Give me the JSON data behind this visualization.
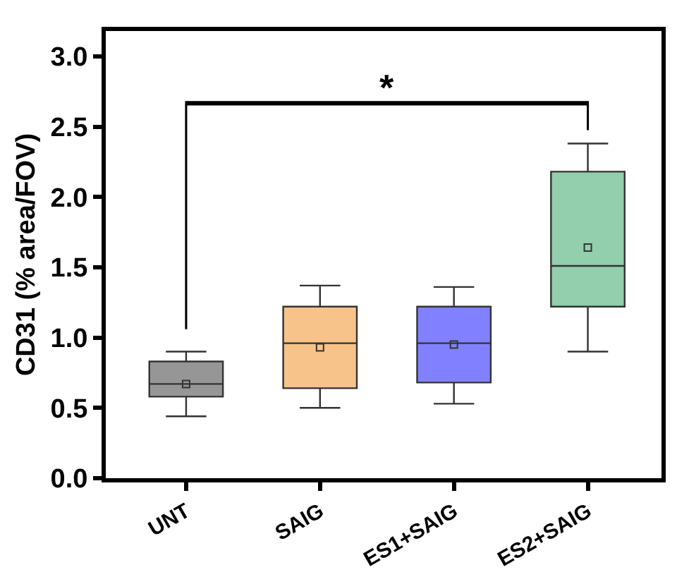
{
  "chart_data": {
    "type": "box",
    "ylabel": "CD31 (% area/FOV)",
    "categories": [
      "UNT",
      "SAIG",
      "ES1+SAIG",
      "ES2+SAIG"
    ],
    "boxes": [
      {
        "low": 0.44,
        "q1": 0.58,
        "median": 0.67,
        "q3": 0.83,
        "high": 0.9,
        "mean": 0.67
      },
      {
        "low": 0.5,
        "q1": 0.64,
        "median": 0.96,
        "q3": 1.22,
        "high": 1.37,
        "mean": 0.93
      },
      {
        "low": 0.53,
        "q1": 0.68,
        "median": 0.96,
        "q3": 1.22,
        "high": 1.36,
        "mean": 0.95
      },
      {
        "low": 0.9,
        "q1": 1.22,
        "median": 1.51,
        "q3": 2.18,
        "high": 2.38,
        "mean": 1.64
      }
    ],
    "colors": [
      "#404040",
      "#f0922a",
      "#1a1aff",
      "#3aa86a"
    ],
    "ylim": [
      0,
      3.18
    ],
    "yticks": [
      {
        "value": 0,
        "label": "0.0"
      },
      {
        "value": 0.5,
        "label": "0.5"
      },
      {
        "value": 1,
        "label": "1.0"
      },
      {
        "value": 1.5,
        "label": "1.5"
      },
      {
        "value": 2,
        "label": "2.0"
      },
      {
        "value": 2.5,
        "label": "2.5"
      },
      {
        "value": 3,
        "label": "3.0"
      }
    ],
    "annotations": [
      "*"
    ]
  }
}
